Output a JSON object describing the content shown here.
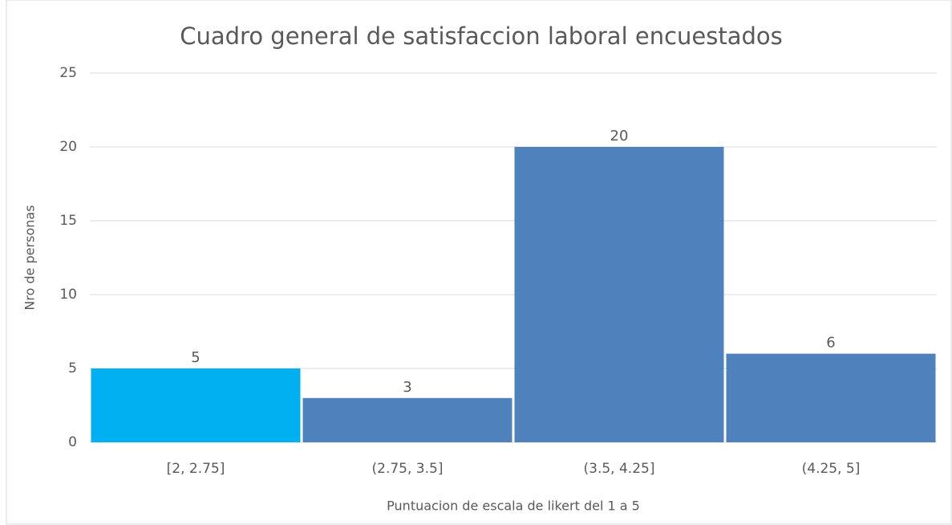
{
  "chart_data": {
    "type": "bar",
    "title": "Cuadro general de satisfaccion laboral encuestados",
    "x_label": "Puntuacion de escala de likert del 1 a 5",
    "y_label": "Nro de personas",
    "categories": [
      "[2, 2.75]",
      "(2.75, 3.5]",
      "(3.5, 4.25]",
      "(4.25, 5]"
    ],
    "values": [
      5,
      3,
      20,
      6
    ],
    "colors": [
      "#00b0f0",
      "#4f81bd",
      "#4f81bd",
      "#4f81bd"
    ],
    "ylim": [
      0,
      25
    ],
    "yticks": [
      0,
      5,
      10,
      15,
      20,
      25
    ],
    "grid": true
  }
}
